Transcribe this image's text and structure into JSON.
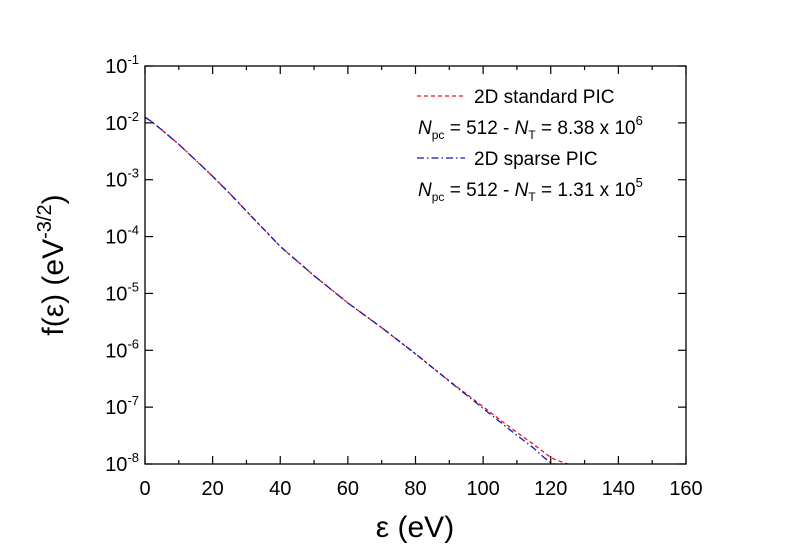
{
  "chart_data": {
    "type": "line",
    "xlabel": "ε (eV)",
    "ylabel": "f(ε) (eV^-3/2)",
    "ylabel_parts": {
      "main": "f(ε) (eV",
      "sup": "-3/2",
      "close": ")"
    },
    "xlim": [
      0,
      160
    ],
    "ylim": [
      1e-08,
      0.1
    ],
    "yscale": "log",
    "x_ticks": [
      "0",
      "20",
      "40",
      "60",
      "80",
      "100",
      "120",
      "140",
      "160"
    ],
    "y_ticks": [
      {
        "base": "10",
        "exp": "-1"
      },
      {
        "base": "10",
        "exp": "-2"
      },
      {
        "base": "10",
        "exp": "-3"
      },
      {
        "base": "10",
        "exp": "-4"
      },
      {
        "base": "10",
        "exp": "-5"
      },
      {
        "base": "10",
        "exp": "-6"
      },
      {
        "base": "10",
        "exp": "-7"
      },
      {
        "base": "10",
        "exp": "-8"
      }
    ],
    "series": [
      {
        "name": "2D standard PIC",
        "color": "#e8141e",
        "style": "dashed",
        "x": [
          0,
          2,
          5,
          10,
          15,
          20,
          25,
          30,
          40,
          50,
          60,
          70,
          80,
          90,
          100,
          105,
          110,
          115,
          118,
          120,
          122,
          124,
          125
        ],
        "y": [
          0.0125,
          0.0105,
          0.0075,
          0.0042,
          0.0022,
          0.00115,
          0.00058,
          0.00028,
          6.7e-05,
          2.05e-05,
          6.8e-06,
          2.5e-06,
          8.6e-07,
          2.9e-07,
          1.02e-07,
          6e-08,
          3.6e-08,
          2.2e-08,
          1.6e-08,
          1.3e-08,
          1.15e-08,
          1.05e-08,
          1e-08
        ]
      },
      {
        "name": "2D sparse PIC",
        "color": "#1515b5",
        "style": "dashdot",
        "x": [
          0,
          2,
          5,
          10,
          15,
          20,
          25,
          30,
          40,
          50,
          60,
          70,
          80,
          90,
          100,
          105,
          110,
          115,
          118,
          120,
          121
        ],
        "y": [
          0.0125,
          0.0105,
          0.0075,
          0.0042,
          0.0022,
          0.00115,
          0.00058,
          0.00028,
          6.7e-05,
          2.05e-05,
          6.8e-06,
          2.5e-06,
          8.7e-07,
          2.85e-07,
          9.5e-08,
          5.5e-08,
          3.2e-08,
          1.9e-08,
          1.3e-08,
          1.05e-08,
          1e-08
        ]
      }
    ],
    "legend": [
      {
        "label": "2D standard PIC",
        "color": "#e8141e",
        "style": "dashed"
      },
      {
        "label": "2D sparse PIC",
        "color": "#1515b5",
        "style": "dashdot"
      }
    ],
    "annotations": [
      {
        "n": "N",
        "n_sub": "pc",
        "mid": " = 512 - ",
        "t": "N",
        "t_sub": "T",
        "value": " = 8.38 x 10",
        "exp": "6"
      },
      {
        "n": "N",
        "n_sub": "pc",
        "mid": " = 512 - ",
        "t": "N",
        "t_sub": "T",
        "value": " = 1.31 x 10",
        "exp": "5"
      }
    ],
    "legend_position": "top-right",
    "grid": false
  }
}
